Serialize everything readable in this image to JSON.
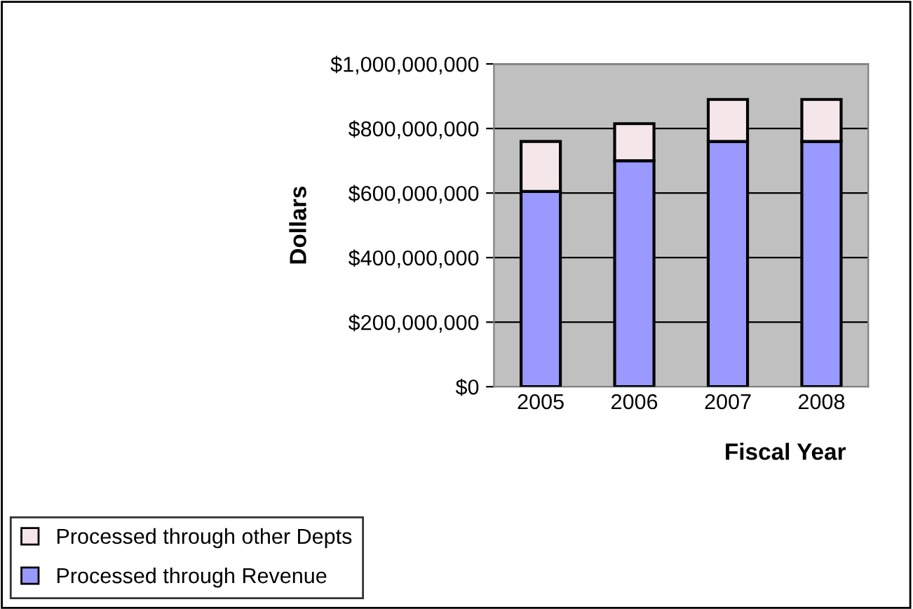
{
  "chart_data": {
    "type": "bar",
    "stacked": true,
    "xlabel": "Fiscal Year",
    "ylabel": "Dollars",
    "categories": [
      "2005",
      "2006",
      "2007",
      "2008"
    ],
    "series": [
      {
        "name": "Processed through Revenue",
        "color": "#9999ff",
        "values": [
          605000000,
          700000000,
          760000000,
          760000000
        ]
      },
      {
        "name": "Processed through other Depts",
        "color": "#f5e6ea",
        "values": [
          155000000,
          115000000,
          130000000,
          130000000
        ]
      }
    ],
    "ylim": [
      0,
      1000000000
    ],
    "yticks": [
      {
        "value": 0,
        "label": "$0"
      },
      {
        "value": 200000000,
        "label": "$200,000,000"
      },
      {
        "value": 400000000,
        "label": "$400,000,000"
      },
      {
        "value": 600000000,
        "label": "$600,000,000"
      },
      {
        "value": 800000000,
        "label": "$800,000,000"
      },
      {
        "value": 1000000000,
        "label": "$1,000,000,000"
      }
    ],
    "grid": "y",
    "legend": "bottom left"
  }
}
